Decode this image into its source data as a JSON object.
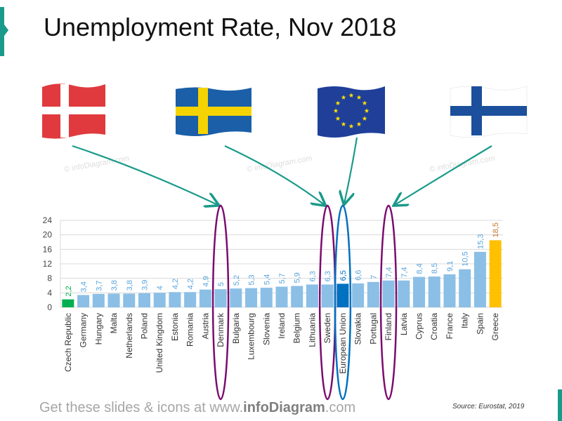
{
  "title": "Unemployment Rate, Nov 2018",
  "footer": {
    "prefix": "Get these slides & icons at www.",
    "brand": "infoDiagram",
    "suffix": ".com"
  },
  "source": "Source: Eurostat, 2019",
  "watermark": "© infoDiagram.com",
  "flags": [
    "Denmark",
    "Sweden",
    "European Union",
    "Finland"
  ],
  "colors": {
    "bar": "#8bbfe6",
    "label": "#5aa5dc",
    "highlight_low": "#00b050",
    "eu": "#0070c0",
    "highlight_high": "#ffc000",
    "high_label": "#c0782a",
    "ellipse_country": "#7b0c6e",
    "ellipse_eu": "#0070c0",
    "arrow": "#1a9a8a"
  },
  "chart_data": {
    "type": "bar",
    "title": "Unemployment Rate, Nov 2018",
    "categories": [
      "Czech Republic",
      "Germany",
      "Hungary",
      "Malta",
      "Netherlands",
      "Poland",
      "United Kingdom",
      "Estonia",
      "Romania",
      "Austria",
      "Denmark",
      "Bulgaria",
      "Luxembourg",
      "Slovenia",
      "Ireland",
      "Belgium",
      "Lithuania",
      "Sweden",
      "European Union",
      "Slovakia",
      "Portugal",
      "Finland",
      "Latvia",
      "Cyprus",
      "Croatia",
      "France",
      "Italy",
      "Spain",
      "Greece"
    ],
    "values": [
      2.2,
      3.4,
      3.7,
      3.8,
      3.8,
      3.9,
      4,
      4.2,
      4.2,
      4.9,
      5,
      5.2,
      5.3,
      5.4,
      5.7,
      5.9,
      6.3,
      6.3,
      6.5,
      6.6,
      7,
      7.4,
      7.4,
      8.4,
      8.5,
      9.1,
      10.5,
      15.3,
      18.5
    ],
    "data_labels": [
      "2,2",
      "3,4",
      "3,7",
      "3,8",
      "3,8",
      "3,9",
      "4",
      "4,2",
      "4,2",
      "4,9",
      "5",
      "5,2",
      "5,3",
      "5,4",
      "5,7",
      "5,9",
      "6,3",
      "6,3",
      "6,5",
      "6,6",
      "7",
      "7,4",
      "7,4",
      "8,4",
      "8,5",
      "9,1",
      "10,5",
      "15,3",
      "18,5"
    ],
    "yticks": [
      "0",
      "4",
      "8",
      "12",
      "16",
      "20",
      "24"
    ],
    "ylim": [
      0,
      24
    ],
    "grid": true,
    "circled": [
      "Denmark",
      "Sweden",
      "European Union",
      "Finland"
    ]
  }
}
